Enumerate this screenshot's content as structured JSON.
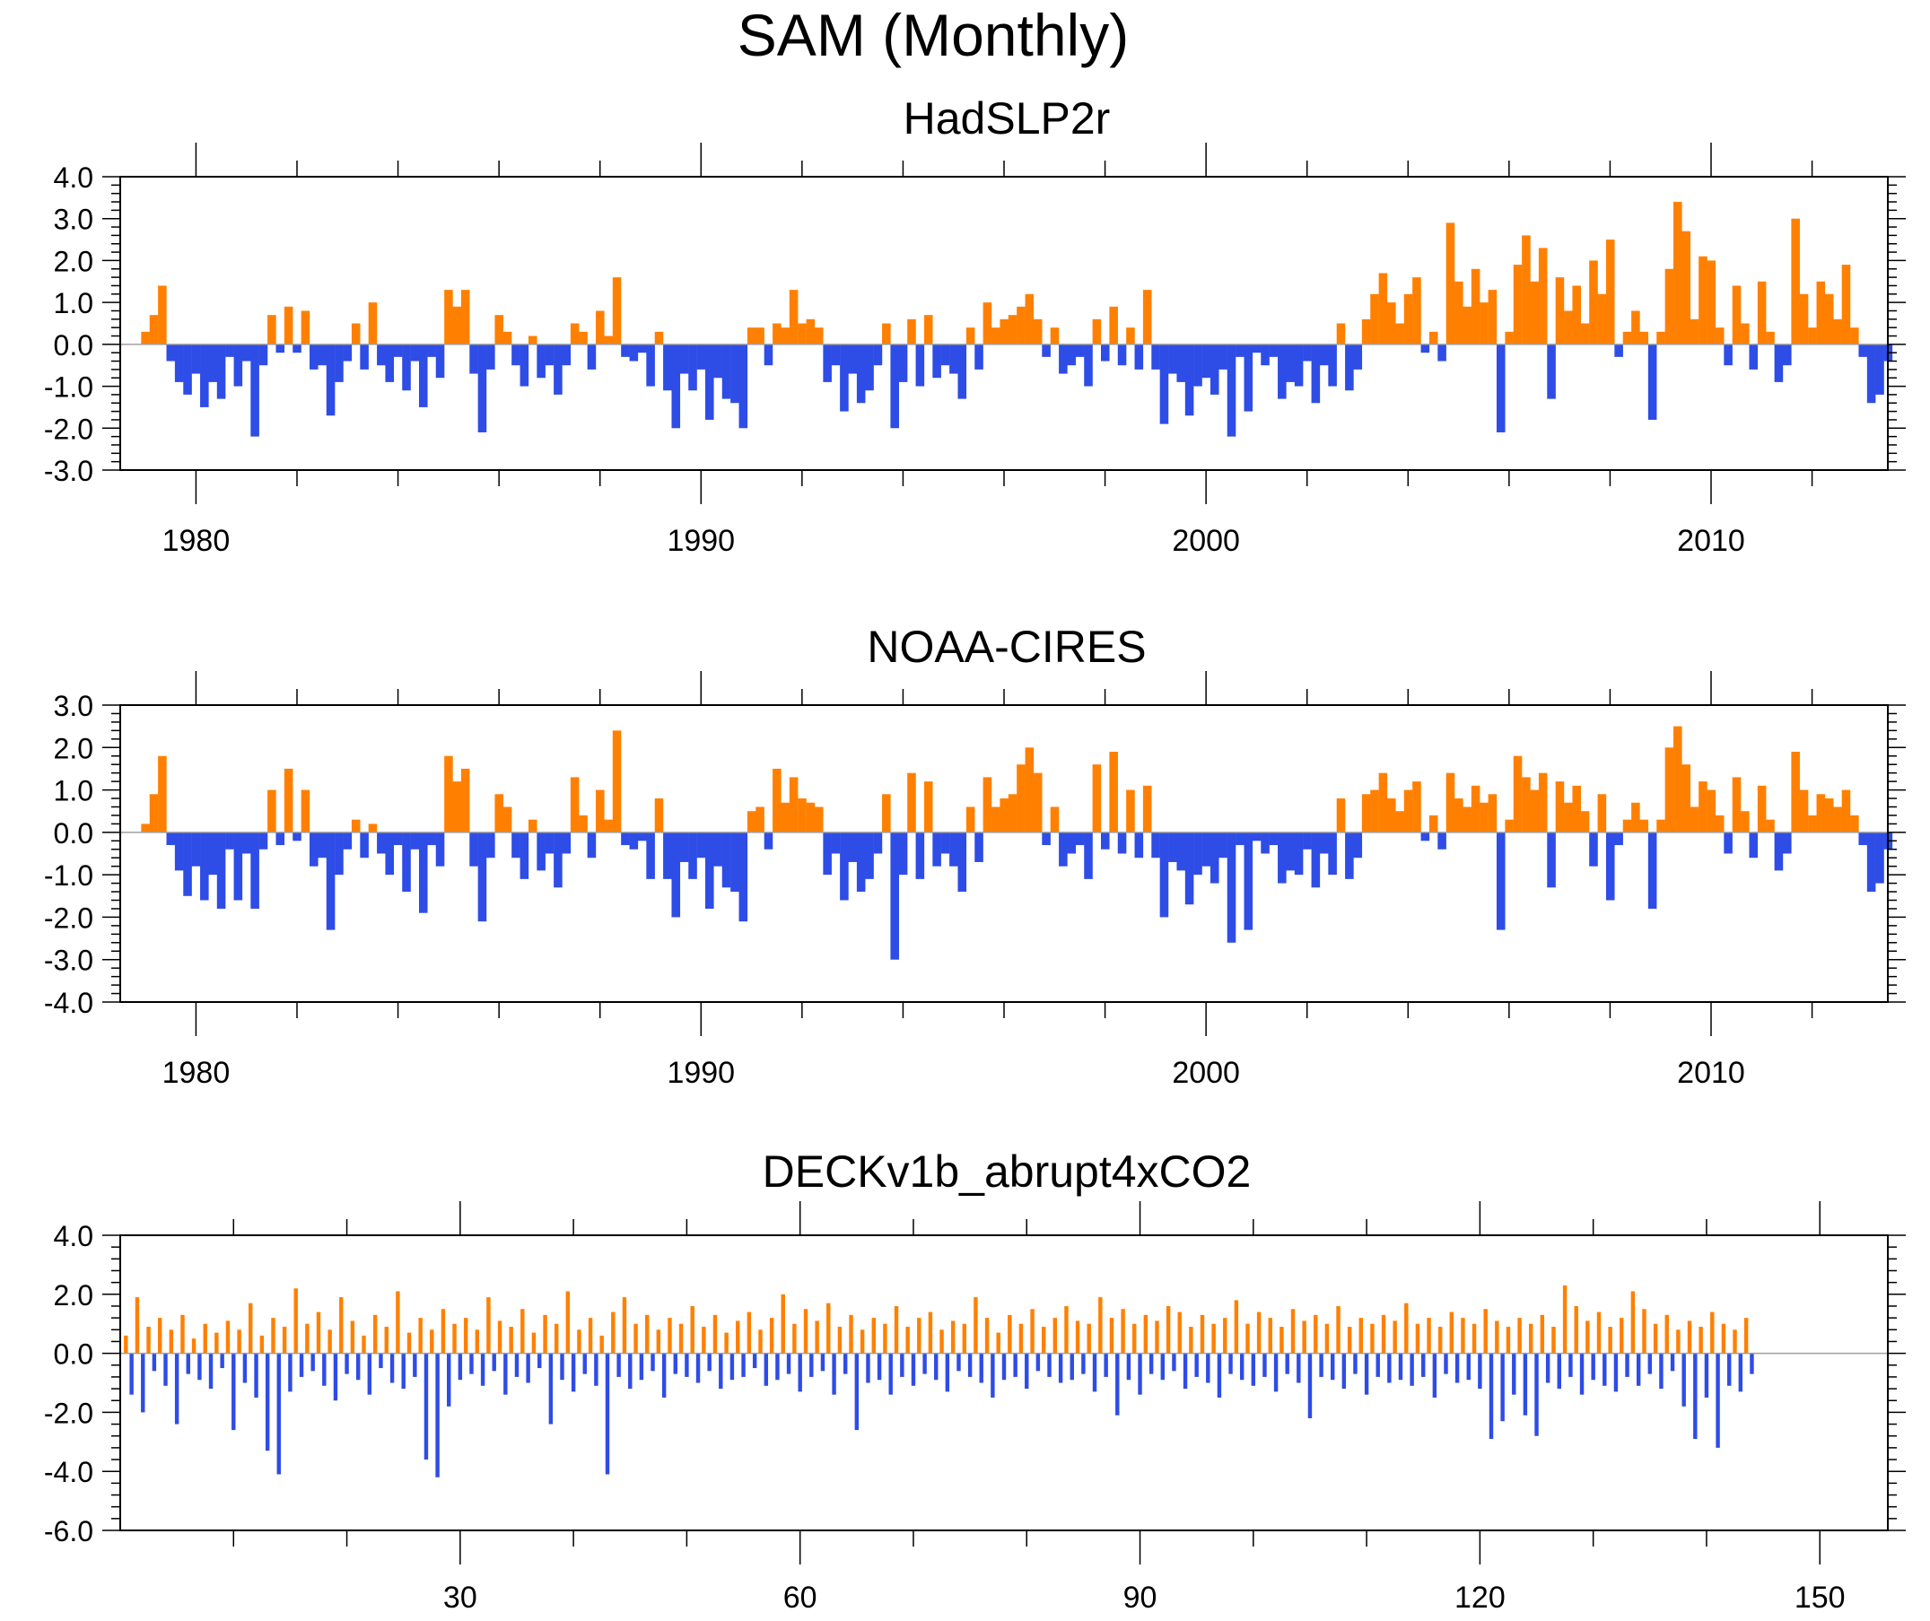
{
  "figure": {
    "title": "SAM (Monthly)"
  },
  "colors": {
    "positive": "#FF8000",
    "negative": "#2E4CE6",
    "axis": "#000000",
    "zero_line": "#A0A0A0"
  },
  "chart_data": [
    {
      "type": "area",
      "title": "HadSLP2r",
      "x_range": [
        1978.5,
        2013.5
      ],
      "ylim": [
        -3.0,
        4.0
      ],
      "y_ticks": [
        4.0,
        3.0,
        2.0,
        1.0,
        0.0,
        -1.0,
        -2.0,
        -3.0
      ],
      "y_tick_labels": [
        "4.0",
        "3.0",
        "2.0",
        "1.0",
        "0.0",
        "-1.0",
        "-2.0",
        "-3.0"
      ],
      "x_ticks": [
        1980,
        1990,
        2000,
        2010
      ],
      "x_tick_labels": [
        "1980",
        "1990",
        "2000",
        "2010"
      ],
      "x_start": 1979.0,
      "x_step": 0.1667,
      "values": [
        0.3,
        0.7,
        1.4,
        -0.4,
        -0.9,
        -1.2,
        -0.7,
        -1.5,
        -0.9,
        -1.3,
        -0.3,
        -1.0,
        -0.4,
        -2.2,
        -0.5,
        0.7,
        -0.2,
        0.9,
        -0.2,
        0.8,
        -0.6,
        -0.5,
        -1.7,
        -0.9,
        -0.4,
        0.5,
        -0.6,
        1.0,
        -0.5,
        -0.9,
        -0.3,
        -1.1,
        -0.4,
        -1.5,
        -0.3,
        -0.8,
        1.3,
        0.9,
        1.3,
        -0.7,
        -2.1,
        -0.6,
        0.7,
        0.3,
        -0.5,
        -1.0,
        0.2,
        -0.8,
        -0.5,
        -1.2,
        -0.5,
        0.5,
        0.3,
        -0.6,
        0.8,
        0.2,
        1.6,
        -0.3,
        -0.4,
        -0.2,
        -1.0,
        0.3,
        -1.1,
        -2.0,
        -0.7,
        -1.1,
        -0.6,
        -1.8,
        -0.8,
        -1.3,
        -1.4,
        -2.0,
        0.4,
        0.4,
        -0.5,
        0.5,
        0.4,
        1.3,
        0.5,
        0.6,
        0.4,
        -0.9,
        -0.5,
        -1.6,
        -0.7,
        -1.4,
        -1.1,
        -0.5,
        0.5,
        -2.0,
        -0.9,
        0.6,
        -1.0,
        0.7,
        -0.8,
        -0.5,
        -0.7,
        -1.3,
        0.4,
        -0.6,
        1.0,
        0.4,
        0.6,
        0.7,
        0.9,
        1.2,
        0.6,
        -0.3,
        0.4,
        -0.7,
        -0.5,
        -0.3,
        -1.0,
        0.6,
        -0.4,
        0.9,
        -0.5,
        0.4,
        -0.6,
        1.3,
        -0.6,
        -1.9,
        -0.7,
        -0.9,
        -1.7,
        -1.0,
        -0.8,
        -1.2,
        -0.6,
        -2.2,
        -0.3,
        -1.6,
        -0.2,
        -0.5,
        -0.3,
        -1.3,
        -0.9,
        -1.0,
        -0.4,
        -1.4,
        -0.5,
        -1.0,
        0.5,
        -1.1,
        -0.6,
        0.6,
        1.2,
        1.7,
        1.0,
        0.5,
        1.2,
        1.6,
        -0.2,
        0.3,
        -0.4,
        2.9,
        1.5,
        0.9,
        1.8,
        1.0,
        1.3,
        -2.1,
        0.3,
        1.9,
        2.6,
        1.5,
        2.3,
        -1.3,
        1.6,
        0.8,
        1.4,
        0.5,
        2.0,
        1.2,
        2.5,
        -0.3,
        0.3,
        0.8,
        0.3,
        -1.8,
        0.3,
        1.8,
        3.4,
        2.7,
        0.6,
        2.1,
        2.0,
        0.4,
        -0.5,
        1.4,
        0.5,
        -0.6,
        1.5,
        0.3,
        -0.9,
        -0.5,
        3.0,
        1.2,
        0.4,
        1.5,
        1.2,
        0.6,
        1.9,
        0.4,
        -0.3,
        -1.4,
        -1.2,
        -0.4
      ]
    },
    {
      "type": "area",
      "title": "NOAA-CIRES",
      "x_range": [
        1978.5,
        2013.5
      ],
      "ylim": [
        -4.0,
        3.0
      ],
      "y_ticks": [
        3.0,
        2.0,
        1.0,
        0.0,
        -1.0,
        -2.0,
        -3.0,
        -4.0
      ],
      "y_tick_labels": [
        "3.0",
        "2.0",
        "1.0",
        "0.0",
        "-1.0",
        "-2.0",
        "-3.0",
        "-4.0"
      ],
      "x_ticks": [
        1980,
        1990,
        2000,
        2010
      ],
      "x_tick_labels": [
        "1980",
        "1990",
        "2000",
        "2010"
      ],
      "x_start": 1979.0,
      "x_step": 0.1667,
      "values": [
        0.2,
        0.9,
        1.8,
        -0.3,
        -0.9,
        -1.5,
        -0.8,
        -1.6,
        -1.0,
        -1.8,
        -0.4,
        -1.6,
        -0.5,
        -1.8,
        -0.4,
        1.0,
        -0.3,
        1.5,
        -0.2,
        1.0,
        -0.8,
        -0.6,
        -2.3,
        -1.0,
        -0.4,
        0.3,
        -0.6,
        0.2,
        -0.5,
        -1.0,
        -0.3,
        -1.4,
        -0.4,
        -1.9,
        -0.3,
        -0.8,
        1.8,
        1.2,
        1.5,
        -0.8,
        -2.1,
        -0.6,
        0.9,
        0.6,
        -0.6,
        -1.1,
        0.3,
        -0.9,
        -0.5,
        -1.3,
        -0.5,
        1.3,
        0.4,
        -0.6,
        1.0,
        0.3,
        2.4,
        -0.3,
        -0.4,
        -0.2,
        -1.1,
        0.8,
        -1.1,
        -2.0,
        -0.7,
        -1.1,
        -0.6,
        -1.8,
        -0.8,
        -1.3,
        -1.4,
        -2.1,
        0.5,
        0.6,
        -0.4,
        1.5,
        0.7,
        1.3,
        0.8,
        0.7,
        0.6,
        -1.0,
        -0.5,
        -1.6,
        -0.7,
        -1.4,
        -1.1,
        -0.5,
        0.9,
        -3.0,
        -1.0,
        1.4,
        -1.1,
        1.2,
        -0.8,
        -0.5,
        -0.8,
        -1.4,
        0.6,
        -0.7,
        1.3,
        0.6,
        0.8,
        0.9,
        1.6,
        2.0,
        1.4,
        -0.3,
        0.6,
        -0.8,
        -0.5,
        -0.3,
        -1.1,
        1.6,
        -0.4,
        1.9,
        -0.5,
        1.0,
        -0.6,
        1.1,
        -0.6,
        -2.0,
        -0.7,
        -0.9,
        -1.7,
        -1.0,
        -0.8,
        -1.2,
        -0.6,
        -2.6,
        -0.3,
        -2.3,
        -0.2,
        -0.5,
        -0.3,
        -1.2,
        -0.9,
        -1.0,
        -0.4,
        -1.3,
        -0.5,
        -1.0,
        0.8,
        -1.1,
        -0.6,
        0.9,
        1.0,
        1.4,
        0.8,
        0.5,
        1.0,
        1.2,
        -0.2,
        0.4,
        -0.4,
        1.4,
        0.8,
        0.6,
        1.1,
        0.7,
        0.9,
        -2.3,
        0.3,
        1.8,
        1.3,
        1.0,
        1.4,
        -1.3,
        1.2,
        0.7,
        1.1,
        0.5,
        -0.8,
        0.9,
        -1.6,
        -0.3,
        0.3,
        0.7,
        0.3,
        -1.8,
        0.3,
        2.0,
        2.5,
        1.6,
        0.6,
        1.2,
        1.0,
        0.4,
        -0.5,
        1.3,
        0.5,
        -0.6,
        1.1,
        0.3,
        -0.9,
        -0.5,
        1.9,
        1.0,
        0.4,
        0.9,
        0.8,
        0.6,
        1.0,
        0.4,
        -0.3,
        -1.4,
        -1.2,
        -0.4
      ]
    },
    {
      "type": "area",
      "title": "DECKv1b_abrupt4xCO2",
      "x_range": [
        0,
        156
      ],
      "ylim": [
        -6.0,
        4.0
      ],
      "y_ticks": [
        4.0,
        2.0,
        0.0,
        -2.0,
        -4.0,
        -6.0
      ],
      "y_tick_labels": [
        "4.0",
        "2.0",
        "0.0",
        "-2.0",
        "-4.0",
        "-6.0"
      ],
      "x_ticks": [
        30,
        60,
        90,
        120,
        150
      ],
      "x_tick_labels": [
        "30",
        "60",
        "90",
        "120",
        "150"
      ],
      "x_start": 0.5,
      "x_step": 0.5,
      "values": [
        0.6,
        -1.4,
        1.9,
        -2.0,
        0.9,
        -0.6,
        1.2,
        -1.1,
        0.8,
        -2.4,
        1.3,
        -0.7,
        0.5,
        -0.9,
        1.0,
        -1.2,
        0.7,
        -0.5,
        1.1,
        -2.6,
        0.8,
        -1.0,
        1.7,
        -1.5,
        0.6,
        -3.3,
        1.2,
        -4.1,
        0.9,
        -1.3,
        2.2,
        -0.8,
        1.0,
        -0.6,
        1.4,
        -1.1,
        0.8,
        -1.6,
        1.9,
        -0.7,
        1.1,
        -0.9,
        0.6,
        -1.4,
        1.3,
        -0.5,
        0.9,
        -1.0,
        2.1,
        -1.2,
        0.7,
        -0.8,
        1.2,
        -3.6,
        0.8,
        -4.2,
        1.5,
        -1.8,
        1.0,
        -0.9,
        1.2,
        -0.7,
        0.8,
        -1.1,
        1.9,
        -0.6,
        1.1,
        -1.4,
        0.9,
        -0.8,
        1.5,
        -1.0,
        0.7,
        -0.5,
        1.3,
        -2.4,
        1.0,
        -0.9,
        2.1,
        -1.3,
        0.8,
        -0.7,
        1.2,
        -1.1,
        0.6,
        -4.1,
        1.4,
        -0.8,
        1.9,
        -1.2,
        1.0,
        -0.9,
        1.3,
        -0.6,
        0.8,
        -1.5,
        1.2,
        -0.7,
        1.0,
        -0.8,
        1.6,
        -1.0,
        0.9,
        -0.6,
        1.3,
        -1.2,
        0.7,
        -0.9,
        1.1,
        -0.8,
        1.4,
        -0.5,
        0.8,
        -1.1,
        1.2,
        -0.9,
        2.0,
        -0.7,
        1.0,
        -1.3,
        1.5,
        -0.8,
        1.1,
        -0.6,
        1.7,
        -1.4,
        0.9,
        -0.7,
        1.3,
        -2.6,
        0.8,
        -1.0,
        1.2,
        -0.9,
        1.0,
        -1.4,
        1.6,
        -0.8,
        0.9,
        -1.1,
        1.2,
        -0.7,
        1.4,
        -0.9,
        0.8,
        -1.3,
        1.1,
        -0.6,
        1.0,
        -0.8,
        1.9,
        -1.0,
        1.2,
        -1.5,
        0.7,
        -0.9,
        1.3,
        -0.8,
        1.0,
        -1.2,
        1.5,
        -0.6,
        0.9,
        -0.8,
        1.2,
        -1.0,
        1.6,
        -0.9,
        1.1,
        -0.7,
        1.0,
        -1.3,
        1.9,
        -0.8,
        1.2,
        -2.1,
        1.5,
        -0.9,
        1.0,
        -1.4,
        1.3,
        -0.7,
        1.1,
        -0.9,
        1.6,
        -0.6,
        1.4,
        -1.2,
        0.9,
        -0.8,
        1.3,
        -1.0,
        1.0,
        -1.5,
        1.2,
        -0.7,
        1.8,
        -0.9,
        1.0,
        -1.1,
        1.4,
        -0.8,
        1.2,
        -1.3,
        0.9,
        -0.7,
        1.5,
        -1.0,
        1.1,
        -2.2,
        1.3,
        -0.8,
        1.0,
        -0.9,
        1.6,
        -1.2,
        0.9,
        -0.7,
        1.2,
        -1.4,
        1.0,
        -0.8,
        1.3,
        -1.0,
        1.1,
        -0.9,
        1.7,
        -1.1,
        1.0,
        -0.8,
        1.2,
        -1.5,
        0.9,
        -0.7,
        1.4,
        -1.0,
        1.2,
        -0.9,
        1.0,
        -1.2,
        1.5,
        -2.9,
        1.1,
        -2.3,
        0.9,
        -1.4,
        1.2,
        -2.1,
        1.0,
        -2.8,
        1.3,
        -1.0,
        0.9,
        -1.2,
        2.3,
        -0.8,
        1.6,
        -1.4,
        1.1,
        -0.9,
        1.4,
        -1.1,
        0.9,
        -1.3,
        1.2,
        -0.8,
        2.1,
        -1.1,
        1.5,
        -0.7,
        1.0,
        -1.2,
        1.3,
        -0.6,
        0.8,
        -1.8,
        1.1,
        -2.9,
        0.9,
        -1.5,
        1.4,
        -3.2,
        1.0,
        -1.1,
        0.8,
        -1.3,
        1.2,
        -0.7
      ]
    }
  ]
}
